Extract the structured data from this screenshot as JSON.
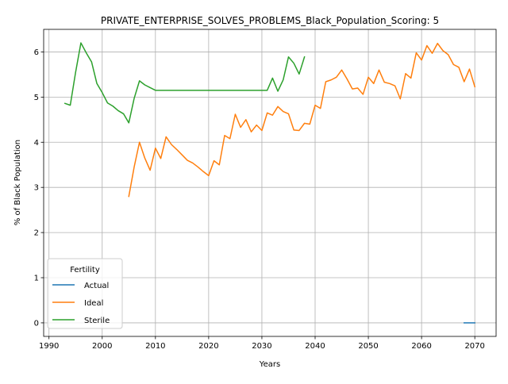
{
  "chart_data": {
    "type": "line",
    "title": "PRIVATE_ENTERPRISE_SOLVES_PROBLEMS_Black_Population_Scoring: 5",
    "xlabel": "Years",
    "ylabel": "% of Black Population",
    "xlim": [
      1989,
      2074
    ],
    "ylim": [
      -0.3,
      6.5
    ],
    "x_ticks": [
      1990,
      2000,
      2010,
      2020,
      2030,
      2040,
      2050,
      2060,
      2070
    ],
    "y_ticks": [
      0,
      1,
      2,
      3,
      4,
      5,
      6
    ],
    "grid": true,
    "legend": {
      "title": "Fertility",
      "placement": "lower-left"
    },
    "series": [
      {
        "name": "Actual",
        "color": "#1f77b4",
        "x": [
          2068,
          2069,
          2070
        ],
        "y": [
          0.0,
          0.0,
          0.0
        ]
      },
      {
        "name": "Ideal",
        "color": "#ff7f0e",
        "x": [
          2005,
          2006,
          2007,
          2008,
          2009,
          2010,
          2011,
          2012,
          2013,
          2014,
          2015,
          2016,
          2017,
          2018,
          2019,
          2020,
          2021,
          2022,
          2023,
          2024,
          2025,
          2026,
          2027,
          2028,
          2029,
          2030,
          2031,
          2032,
          2033,
          2034,
          2035,
          2036,
          2037,
          2038,
          2039,
          2040,
          2041,
          2042,
          2043,
          2044,
          2045,
          2046,
          2047,
          2048,
          2049,
          2050,
          2051,
          2052,
          2053,
          2054,
          2055,
          2056,
          2057,
          2058,
          2059,
          2060,
          2061,
          2062,
          2063,
          2064,
          2065,
          2066,
          2067,
          2068,
          2069,
          2070
        ],
        "y": [
          2.8,
          3.45,
          4.0,
          3.65,
          3.38,
          3.87,
          3.64,
          4.12,
          3.95,
          3.84,
          3.72,
          3.6,
          3.54,
          3.45,
          3.35,
          3.26,
          3.59,
          3.5,
          4.15,
          4.08,
          4.62,
          4.33,
          4.5,
          4.23,
          4.38,
          4.26,
          4.65,
          4.6,
          4.79,
          4.68,
          4.63,
          4.27,
          4.26,
          4.42,
          4.4,
          4.82,
          4.75,
          5.34,
          5.38,
          5.44,
          5.6,
          5.4,
          5.18,
          5.2,
          5.06,
          5.44,
          5.3,
          5.6,
          5.33,
          5.3,
          5.25,
          4.96,
          5.52,
          5.42,
          5.98,
          5.82,
          6.14,
          5.97,
          6.19,
          6.03,
          5.94,
          5.72,
          5.66,
          5.34,
          5.62,
          5.23
        ]
      },
      {
        "name": "Sterile",
        "color": "#2ca02c",
        "x": [
          1993,
          1994,
          1995,
          1996,
          1997,
          1998,
          1999,
          2000,
          2001,
          2002,
          2003,
          2004,
          2005,
          2006,
          2007,
          2008,
          2009,
          2010,
          2011,
          2012,
          2013,
          2014,
          2015,
          2016,
          2017,
          2018,
          2019,
          2020,
          2021,
          2022,
          2023,
          2024,
          2025,
          2026,
          2027,
          2028,
          2029,
          2030,
          2031,
          2032,
          2033,
          2034,
          2035,
          2036,
          2037,
          2038
        ],
        "y": [
          4.86,
          4.82,
          5.55,
          6.2,
          5.98,
          5.78,
          5.3,
          5.1,
          4.87,
          4.8,
          4.7,
          4.63,
          4.43,
          4.97,
          5.36,
          5.27,
          5.21,
          5.15,
          5.15,
          5.15,
          5.15,
          5.15,
          5.15,
          5.15,
          5.15,
          5.15,
          5.15,
          5.15,
          5.15,
          5.15,
          5.15,
          5.15,
          5.15,
          5.15,
          5.15,
          5.15,
          5.15,
          5.15,
          5.15,
          5.42,
          5.13,
          5.38,
          5.89,
          5.75,
          5.51,
          5.89
        ]
      }
    ]
  }
}
